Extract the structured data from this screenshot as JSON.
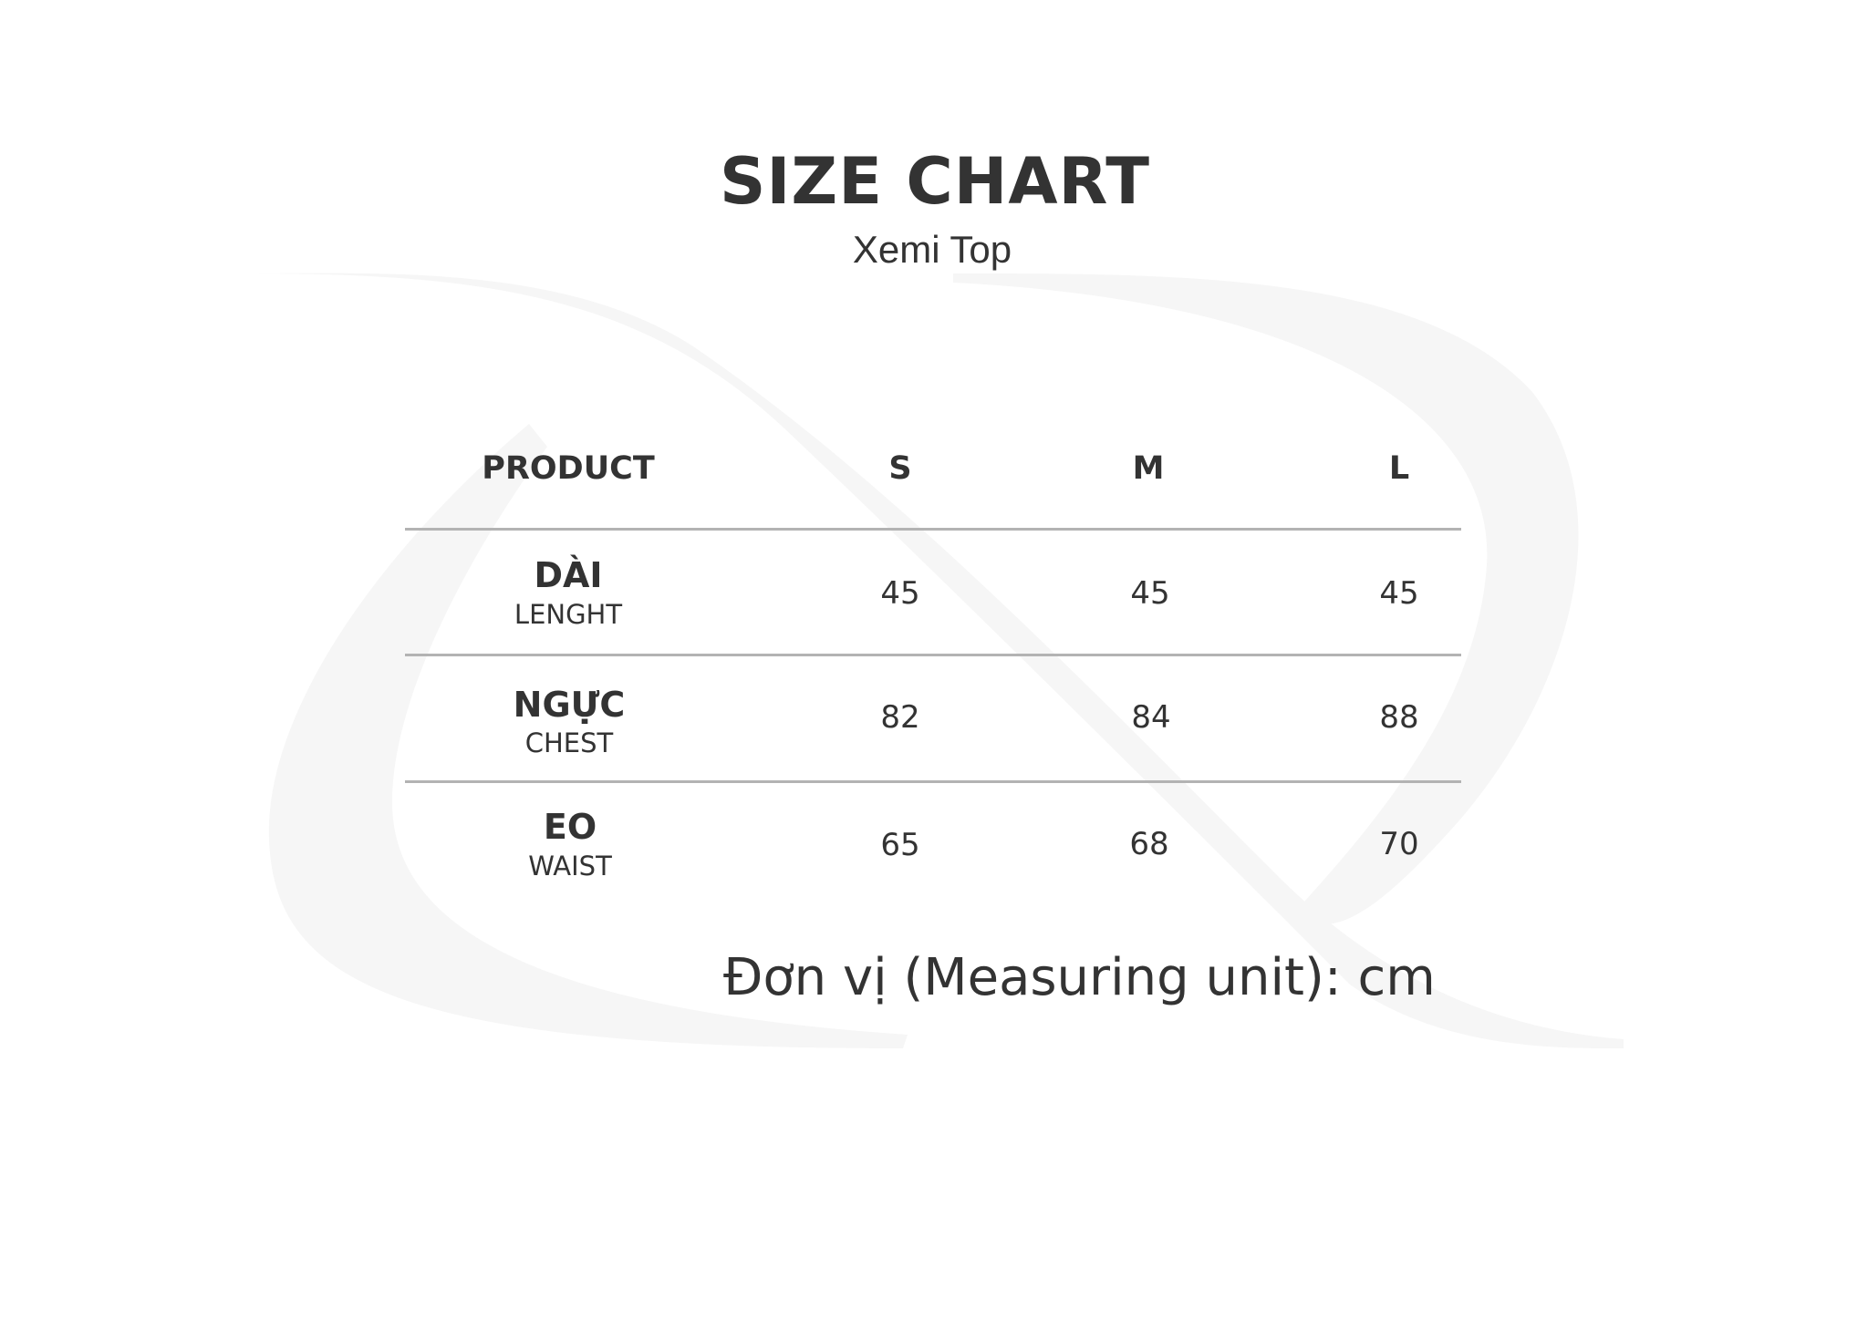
{
  "header": {
    "title": "SIZE CHART",
    "subtitle": "Xemi Top"
  },
  "table": {
    "columns": [
      "PRODUCT",
      "S",
      "M",
      "L"
    ],
    "rows": [
      {
        "label": "DÀI",
        "sublabel": "LENGHT",
        "values": [
          "45",
          "45",
          "45"
        ]
      },
      {
        "label": "NGỰC",
        "sublabel": "CHEST",
        "values": [
          "82",
          "84",
          "88"
        ]
      },
      {
        "label": "EO",
        "sublabel": "WAIST",
        "values": [
          "65",
          "68",
          "70"
        ]
      }
    ]
  },
  "footer": {
    "unit_note": "Đơn vị (Measuring unit): cm"
  },
  "colors": {
    "text": "#333333",
    "divider": "#b3b3b3",
    "watermark": "#f5f5f5"
  }
}
